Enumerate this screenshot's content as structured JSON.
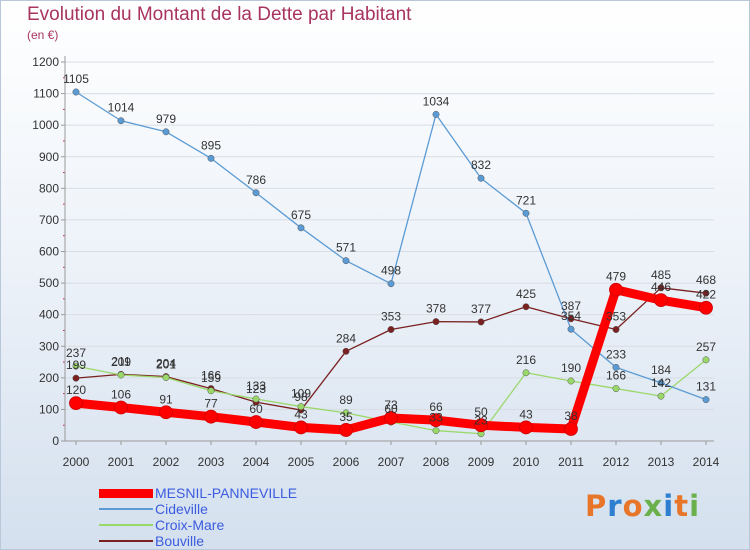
{
  "header": {
    "title": "Evolution du Montant de la Dette par Habitant",
    "unit": "(en €)"
  },
  "colors": {
    "title": "#a8345f",
    "axis": "#9a9a9a",
    "tick_text": "#333333",
    "legend_text": "#3b5ce0",
    "grid": "#d8dde4"
  },
  "chart_data": {
    "type": "line",
    "title": "Evolution du Montant de la Dette par Habitant",
    "ylabel": "(en €)",
    "xlabel": "",
    "x": [
      2000,
      2001,
      2002,
      2003,
      2004,
      2005,
      2006,
      2007,
      2008,
      2009,
      2010,
      2011,
      2012,
      2013,
      2014
    ],
    "ylim": [
      0,
      1200
    ],
    "yticks": [
      0,
      100,
      200,
      300,
      400,
      500,
      600,
      700,
      800,
      900,
      1000,
      1100,
      1200
    ],
    "grid": "horizontal",
    "legend_position": "bottom-left",
    "series": [
      {
        "name": "Bouville",
        "color": "#7a2020",
        "values": [
          199,
          211,
          204,
          166,
          123,
          98,
          284,
          353,
          378,
          377,
          425,
          387,
          353,
          485,
          468
        ]
      },
      {
        "name": "Croix-Mare",
        "color": "#9ad86a",
        "values": [
          237,
          209,
          201,
          159,
          133,
          109,
          89,
          60,
          33,
          23,
          216,
          190,
          166,
          142,
          257
        ]
      },
      {
        "name": "Cideville",
        "color": "#5b9bd5",
        "values": [
          1105,
          1014,
          979,
          895,
          786,
          675,
          571,
          498,
          1034,
          832,
          721,
          354,
          233,
          184,
          131
        ]
      },
      {
        "name": "MESNIL-PANNEVILLE",
        "color": "#ff0000",
        "values": [
          120,
          106,
          91,
          77,
          60,
          43,
          35,
          73,
          66,
          50,
          43,
          38,
          479,
          446,
          422
        ]
      }
    ]
  },
  "legend": {
    "items": [
      {
        "label": "MESNIL-PANNEVILLE",
        "color": "#ff0000"
      },
      {
        "label": "Cideville",
        "color": "#5b9bd5"
      },
      {
        "label": "Croix-Mare",
        "color": "#9ad86a"
      },
      {
        "label": "Bouville",
        "color": "#7a2020"
      }
    ]
  },
  "logo": {
    "text": "Proxiti",
    "colors": [
      "#e8762a",
      "#2f7fd0",
      "#e8762a",
      "#6ab04c",
      "#2f7fd0",
      "#e8762a",
      "#6ab04c"
    ]
  }
}
